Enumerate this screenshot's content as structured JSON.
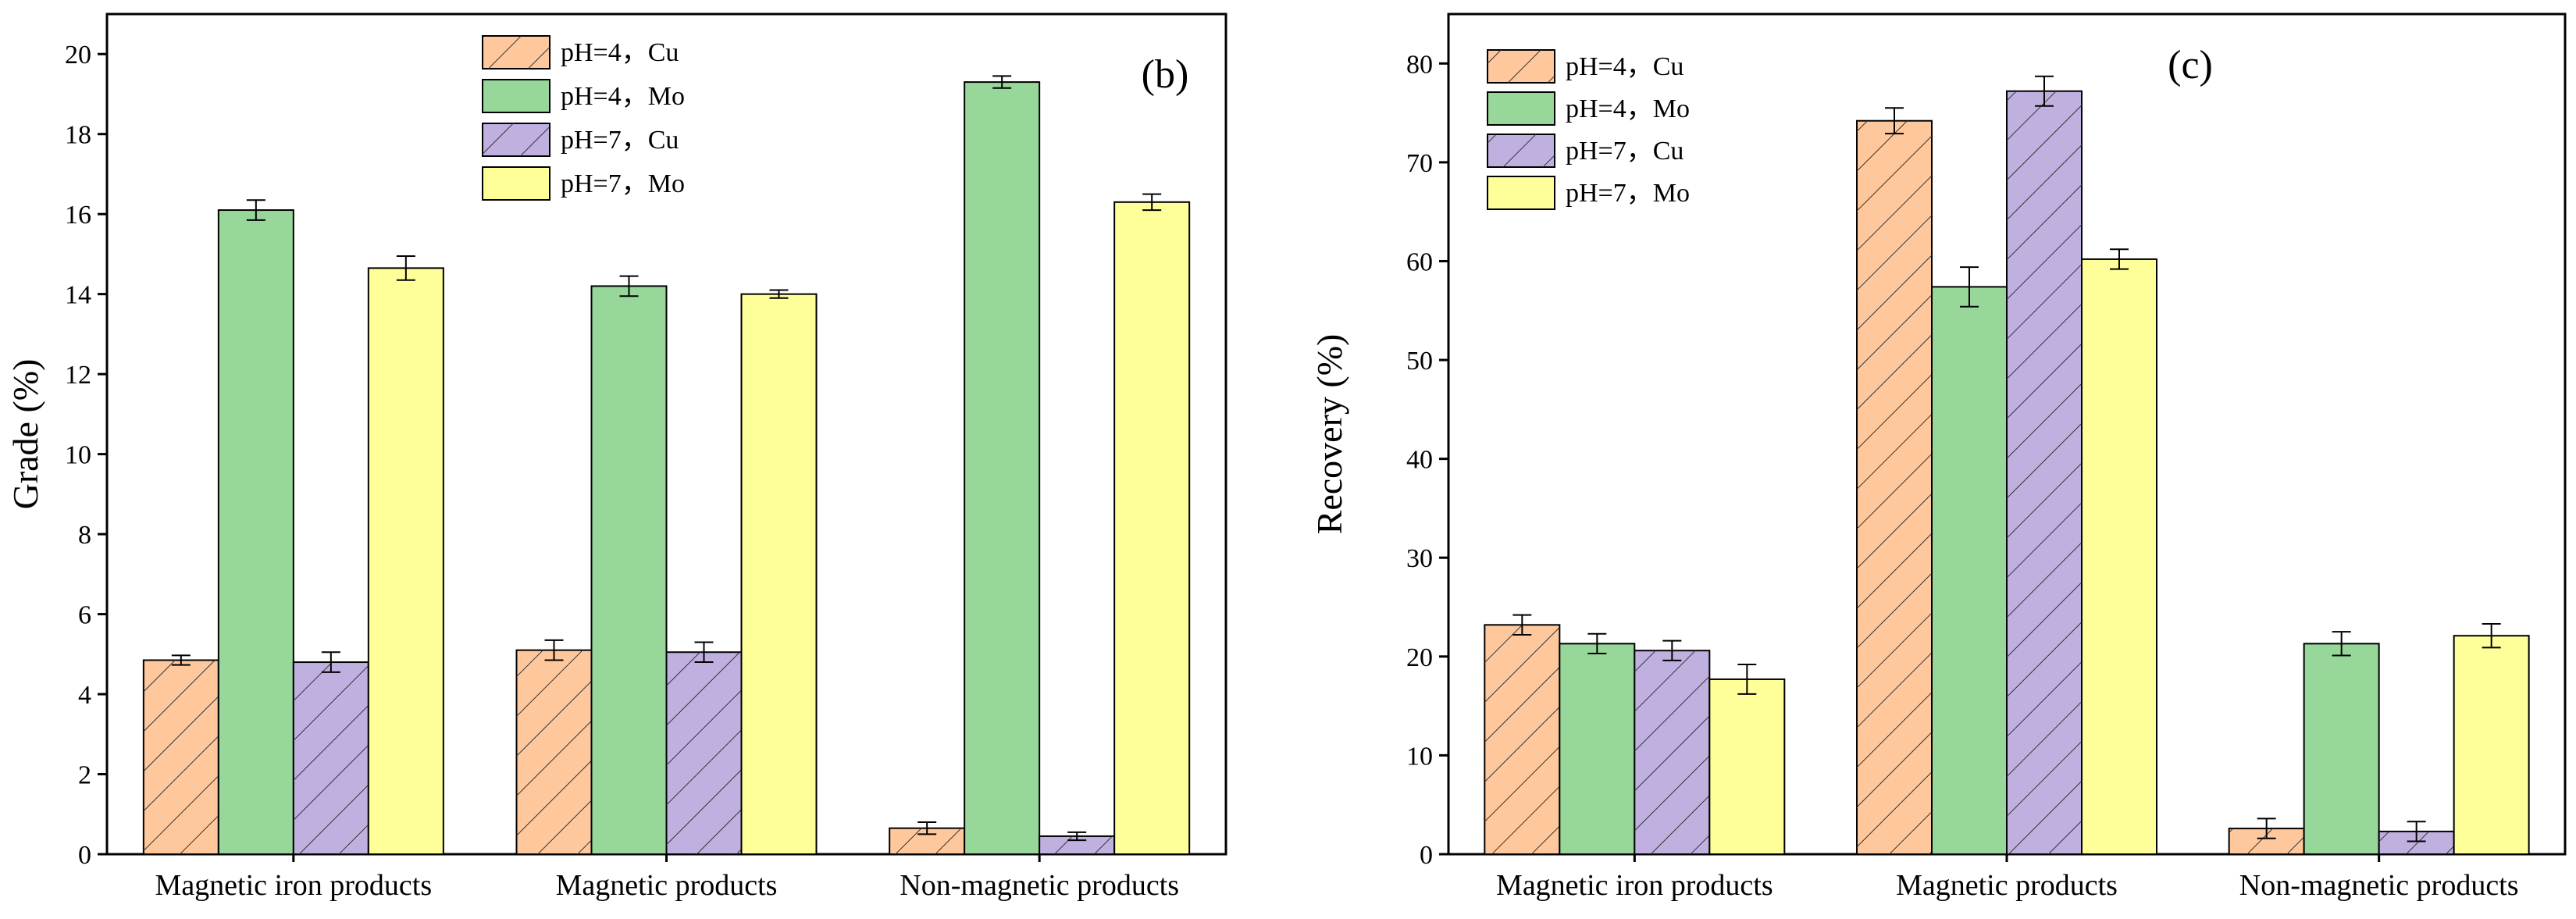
{
  "colors": {
    "cu4_fill": "#FFC89C",
    "mo4_fill": "#98D79A",
    "cu7_fill": "#C0B0E0",
    "mo7_fill": "#FFFF99",
    "edge": "#000000",
    "hatch": "#333333"
  },
  "chart_data": [
    {
      "type": "bar",
      "panel_label": "(b)",
      "ylabel": "Grade (%)",
      "xlabel": "",
      "ylim": [
        0,
        21
      ],
      "yticks": [
        "0",
        "2",
        "4",
        "6",
        "8",
        "10",
        "12",
        "14",
        "16",
        "18",
        "20"
      ],
      "categories": [
        "Magnetic iron products",
        "Magnetic products",
        "Non-magnetic products"
      ],
      "legend_position": "top-center",
      "series": [
        {
          "name": "pH=4，Cu",
          "hatched": true,
          "color_key": "cu4_fill",
          "values": [
            4.85,
            5.1,
            0.65
          ],
          "errors": [
            0.12,
            0.25,
            0.15
          ]
        },
        {
          "name": "pH=4，Mo",
          "hatched": false,
          "color_key": "mo4_fill",
          "values": [
            16.1,
            14.2,
            19.3
          ],
          "errors": [
            0.25,
            0.25,
            0.15
          ]
        },
        {
          "name": "pH=7，Cu",
          "hatched": true,
          "color_key": "cu7_fill",
          "values": [
            4.8,
            5.05,
            0.45
          ],
          "errors": [
            0.25,
            0.25,
            0.1
          ]
        },
        {
          "name": "pH=7，Mo",
          "hatched": false,
          "color_key": "mo7_fill",
          "values": [
            14.65,
            14.0,
            16.3
          ],
          "errors": [
            0.3,
            0.1,
            0.2
          ]
        }
      ]
    },
    {
      "type": "bar",
      "panel_label": "(c)",
      "ylabel": "Recovery (%)",
      "xlabel": "",
      "ylim": [
        0,
        85
      ],
      "yticks": [
        "0",
        "10",
        "20",
        "30",
        "40",
        "50",
        "60",
        "70",
        "80"
      ],
      "categories": [
        "Magnetic iron products",
        "Magnetic products",
        "Non-magnetic products"
      ],
      "legend_position": "top-left",
      "series": [
        {
          "name": "pH=4，Cu",
          "hatched": true,
          "color_key": "cu4_fill",
          "values": [
            23.2,
            74.2,
            2.6
          ],
          "errors": [
            1.0,
            1.3,
            1.0
          ]
        },
        {
          "name": "pH=4，Mo",
          "hatched": false,
          "color_key": "mo4_fill",
          "values": [
            21.3,
            57.4,
            21.3
          ],
          "errors": [
            1.0,
            2.0,
            1.2
          ]
        },
        {
          "name": "pH=7，Cu",
          "hatched": true,
          "color_key": "cu7_fill",
          "values": [
            20.6,
            77.2,
            2.3
          ],
          "errors": [
            1.0,
            1.5,
            1.0
          ]
        },
        {
          "name": "pH=7，Mo",
          "hatched": false,
          "color_key": "mo7_fill",
          "values": [
            17.7,
            60.2,
            22.1
          ],
          "errors": [
            1.5,
            1.0,
            1.2
          ]
        }
      ]
    }
  ]
}
